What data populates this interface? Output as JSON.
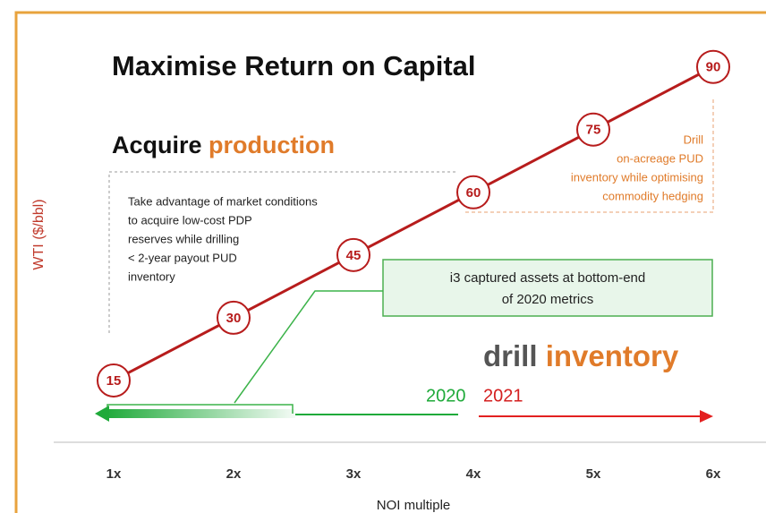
{
  "chart_data": {
    "type": "line",
    "title": "Maximise Return on Capital",
    "subtitle": [
      "Acquire",
      "production"
    ],
    "categories": [
      "1x",
      "2x",
      "3x",
      "4x",
      "5x",
      "6x"
    ],
    "values": [
      15,
      30,
      45,
      60,
      75,
      90
    ],
    "color": "#b71c1c",
    "ylim": [
      0,
      100
    ],
    "xlabel": "NOI multiple",
    "ylabel": "WTI ($/bbl)",
    "annotations": {
      "acquire_note": [
        "Take advantage of market conditions",
        "to acquire low-cost PDP",
        "reserves while drilling",
        "< 2-year payout PUD",
        "inventory"
      ],
      "drill_note": [
        "Drill",
        "on-acreage PUD",
        "inventory while optimising",
        "commodity hedging"
      ],
      "captured_note": [
        "i3 captured assets at bottom-end",
        "of 2020 metrics"
      ],
      "drill_inventory": [
        "drill",
        "inventory"
      ],
      "year_left": "2020",
      "year_right": "2021"
    }
  }
}
